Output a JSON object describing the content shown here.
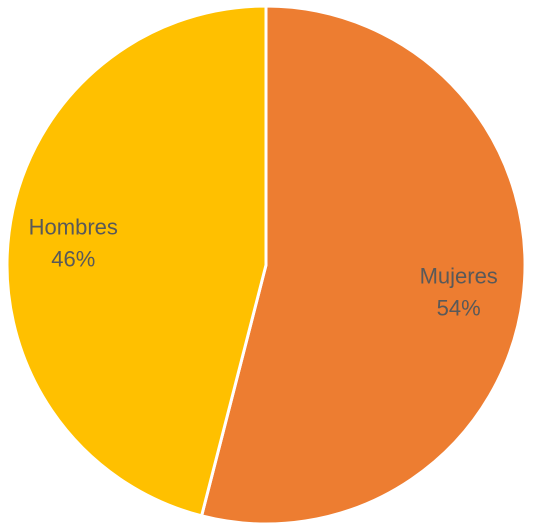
{
  "chart_data": {
    "type": "pie",
    "title": "",
    "slices": [
      {
        "label": "Mujeres",
        "value": 54,
        "value_label": "54%",
        "color": "#ED7D31"
      },
      {
        "label": "Hombres",
        "value": 46,
        "value_label": "46%",
        "color": "#FFC000"
      }
    ],
    "start_angle": "top",
    "direction": "clockwise",
    "legend": "none",
    "slice_border_color": "#ffffff"
  }
}
